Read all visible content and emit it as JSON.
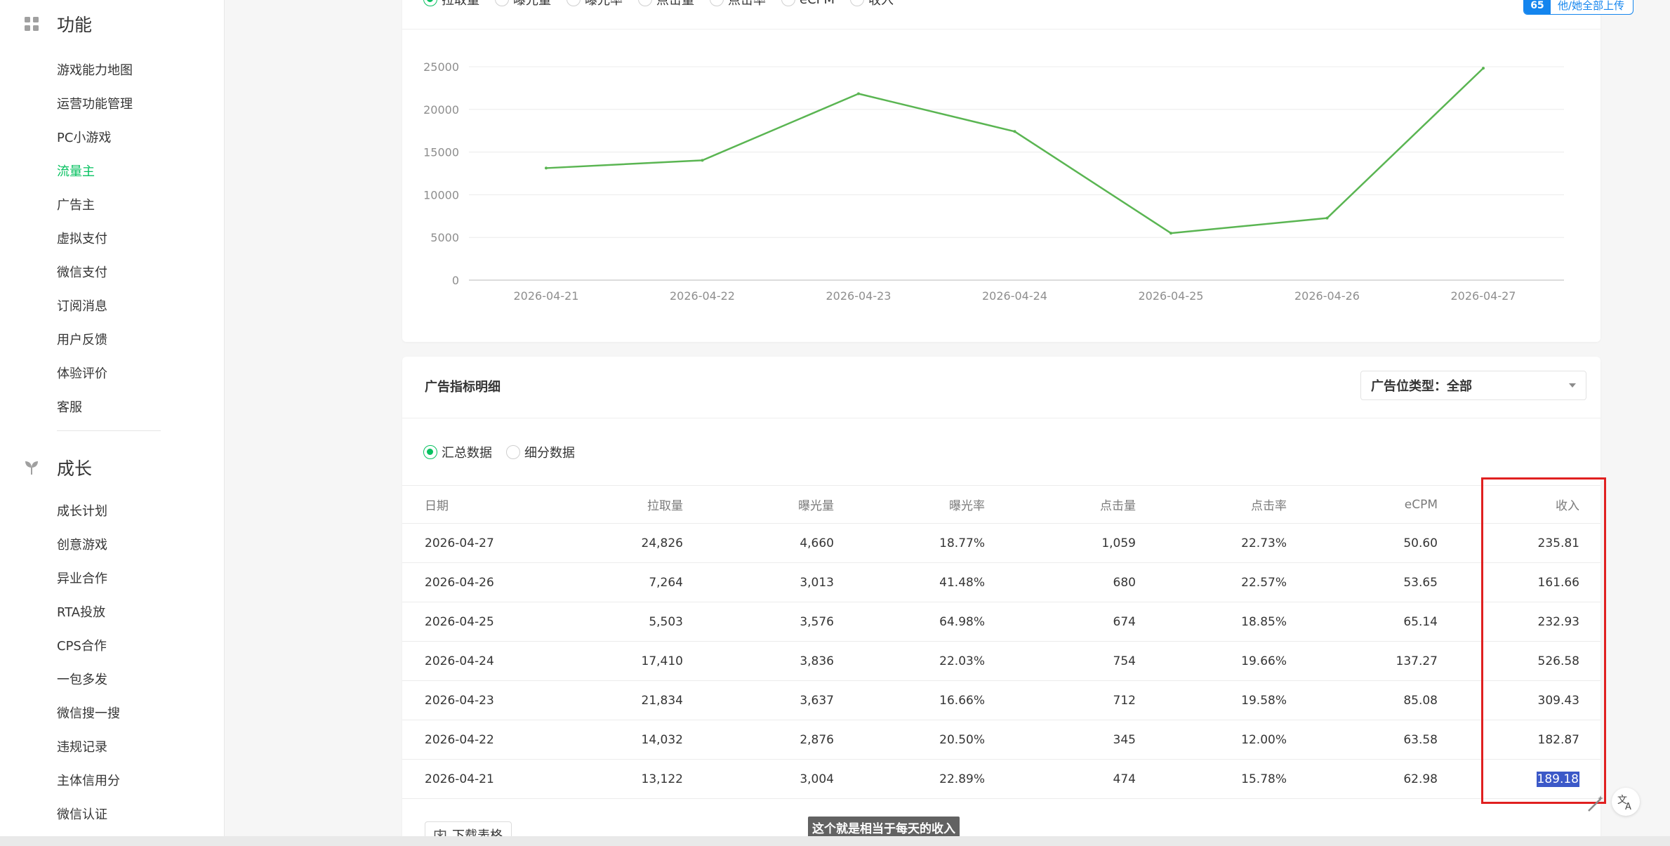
{
  "sidebar": {
    "groups": [
      {
        "title": "功能",
        "icon": "grid-icon",
        "items": [
          "游戏能力地图",
          "运营功能管理",
          "PC小游戏",
          "流量主",
          "广告主",
          "虚拟支付",
          "微信支付",
          "订阅消息",
          "用户反馈",
          "体验评价",
          "客服"
        ],
        "active_item": "流量主"
      },
      {
        "title": "成长",
        "icon": "sprout-icon",
        "items": [
          "成长计划",
          "创意游戏",
          "异业合作",
          "RTA投放",
          "CPS合作",
          "一包多发",
          "微信搜一搜",
          "违规记录",
          "主体信用分",
          "微信认证"
        ]
      }
    ]
  },
  "chart_card": {
    "metric_options": [
      "拉取量",
      "曝光量",
      "曝光率",
      "点击量",
      "点击率",
      "eCPM",
      "收入"
    ],
    "selected_metric": "拉取量"
  },
  "chart_data": {
    "type": "line",
    "categories": [
      "2026-04-21",
      "2026-04-22",
      "2026-04-23",
      "2026-04-24",
      "2026-04-25",
      "2026-04-26",
      "2026-04-27"
    ],
    "series": [
      {
        "name": "",
        "values": [
          13122,
          14032,
          21834,
          17410,
          5503,
          7264,
          24826
        ],
        "color": "#5ab552"
      }
    ],
    "yticks": [
      0,
      5000,
      10000,
      15000,
      20000,
      25000
    ],
    "ylim": [
      0,
      25000
    ],
    "grid": true,
    "title": "",
    "xlabel": "",
    "ylabel": ""
  },
  "table_card": {
    "title": "广告指标明细",
    "select_label": "广告位类型：全部",
    "view_options": [
      "汇总数据",
      "细分数据"
    ],
    "selected_view": "汇总数据",
    "columns": [
      "日期",
      "拉取量",
      "曝光量",
      "曝光率",
      "点击量",
      "点击率",
      "eCPM",
      "收入"
    ],
    "rows": [
      [
        "2026-04-27",
        "24,826",
        "4,660",
        "18.77%",
        "1,059",
        "22.73%",
        "50.60",
        "235.81"
      ],
      [
        "2026-04-26",
        "7,264",
        "3,013",
        "41.48%",
        "680",
        "22.57%",
        "53.65",
        "161.66"
      ],
      [
        "2026-04-25",
        "5,503",
        "3,576",
        "64.98%",
        "674",
        "18.85%",
        "65.14",
        "232.93"
      ],
      [
        "2026-04-24",
        "17,410",
        "3,836",
        "22.03%",
        "754",
        "19.66%",
        "137.27",
        "526.58"
      ],
      [
        "2026-04-23",
        "21,834",
        "3,637",
        "16.66%",
        "712",
        "19.58%",
        "85.08",
        "309.43"
      ],
      [
        "2026-04-22",
        "14,032",
        "2,876",
        "20.50%",
        "345",
        "12.00%",
        "63.58",
        "182.87"
      ],
      [
        "2026-04-21",
        "13,122",
        "3,004",
        "22.89%",
        "474",
        "15.78%",
        "62.98",
        "189.18"
      ]
    ],
    "highlighted_cell": "189.18",
    "download_label": "下载表格"
  },
  "caption": "这个就是相当于每天的收入",
  "float_button": {
    "badge": "65",
    "label": "他/她全部上传"
  },
  "colors": {
    "accent": "#07c160",
    "line": "#5ab552",
    "annotation": "#e02020",
    "link": "#1485ee"
  }
}
